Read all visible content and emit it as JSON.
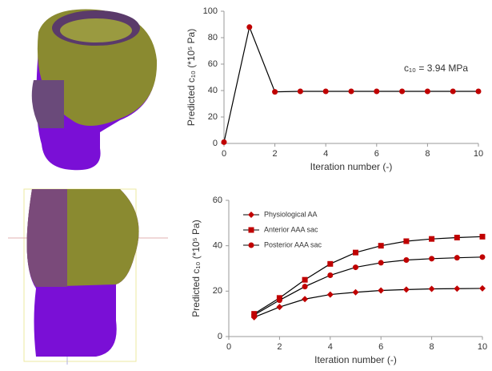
{
  "chart_data": [
    {
      "type": "line",
      "x": [
        0,
        1,
        2,
        3,
        4,
        5,
        6,
        7,
        8,
        9,
        10
      ],
      "values": [
        1,
        88,
        39,
        39.4,
        39.4,
        39.4,
        39.4,
        39.4,
        39.4,
        39.4,
        39.4
      ],
      "color": "#c00000",
      "line_color": "#000000",
      "marker": "circle",
      "xlim": [
        0,
        10
      ],
      "xticks": [
        0,
        2,
        4,
        6,
        8,
        10
      ],
      "ylim": [
        0,
        100
      ],
      "yticks": [
        0,
        20,
        40,
        60,
        80,
        100
      ],
      "x_label": "Iteration number (-)",
      "y_label": "Predicted c₁₀ (*10⁵ Pa)",
      "annotation": "c₁₀ = 3.94 MPa"
    },
    {
      "type": "line",
      "x": [
        1,
        2,
        3,
        4,
        5,
        6,
        7,
        8,
        9,
        10
      ],
      "series": [
        {
          "name": "Physiological AA",
          "color": "#c00000",
          "marker": "diamond",
          "values": [
            8.5,
            13,
            16.5,
            18.5,
            19.5,
            20.3,
            20.7,
            21,
            21.1,
            21.2
          ]
        },
        {
          "name": "Anterior AAA sac",
          "color": "#c00000",
          "marker": "square",
          "values": [
            10,
            17,
            25,
            32,
            37,
            40,
            42,
            43,
            43.6,
            44
          ]
        },
        {
          "name": "Posterior AAA sac",
          "color": "#c00000",
          "marker": "circle",
          "values": [
            9.5,
            16,
            22,
            27,
            30.5,
            32.5,
            33.7,
            34.3,
            34.7,
            35
          ]
        }
      ],
      "line_color": "#000000",
      "legend": "top-left",
      "xlim": [
        0,
        10
      ],
      "xticks": [
        0,
        2,
        4,
        6,
        8,
        10
      ],
      "ylim": [
        0,
        60
      ],
      "yticks": [
        0,
        20,
        40,
        60
      ],
      "x_label": "Iteration number (-)",
      "y_label": "Predicted c₁₀ (*10⁵ Pa)"
    }
  ]
}
